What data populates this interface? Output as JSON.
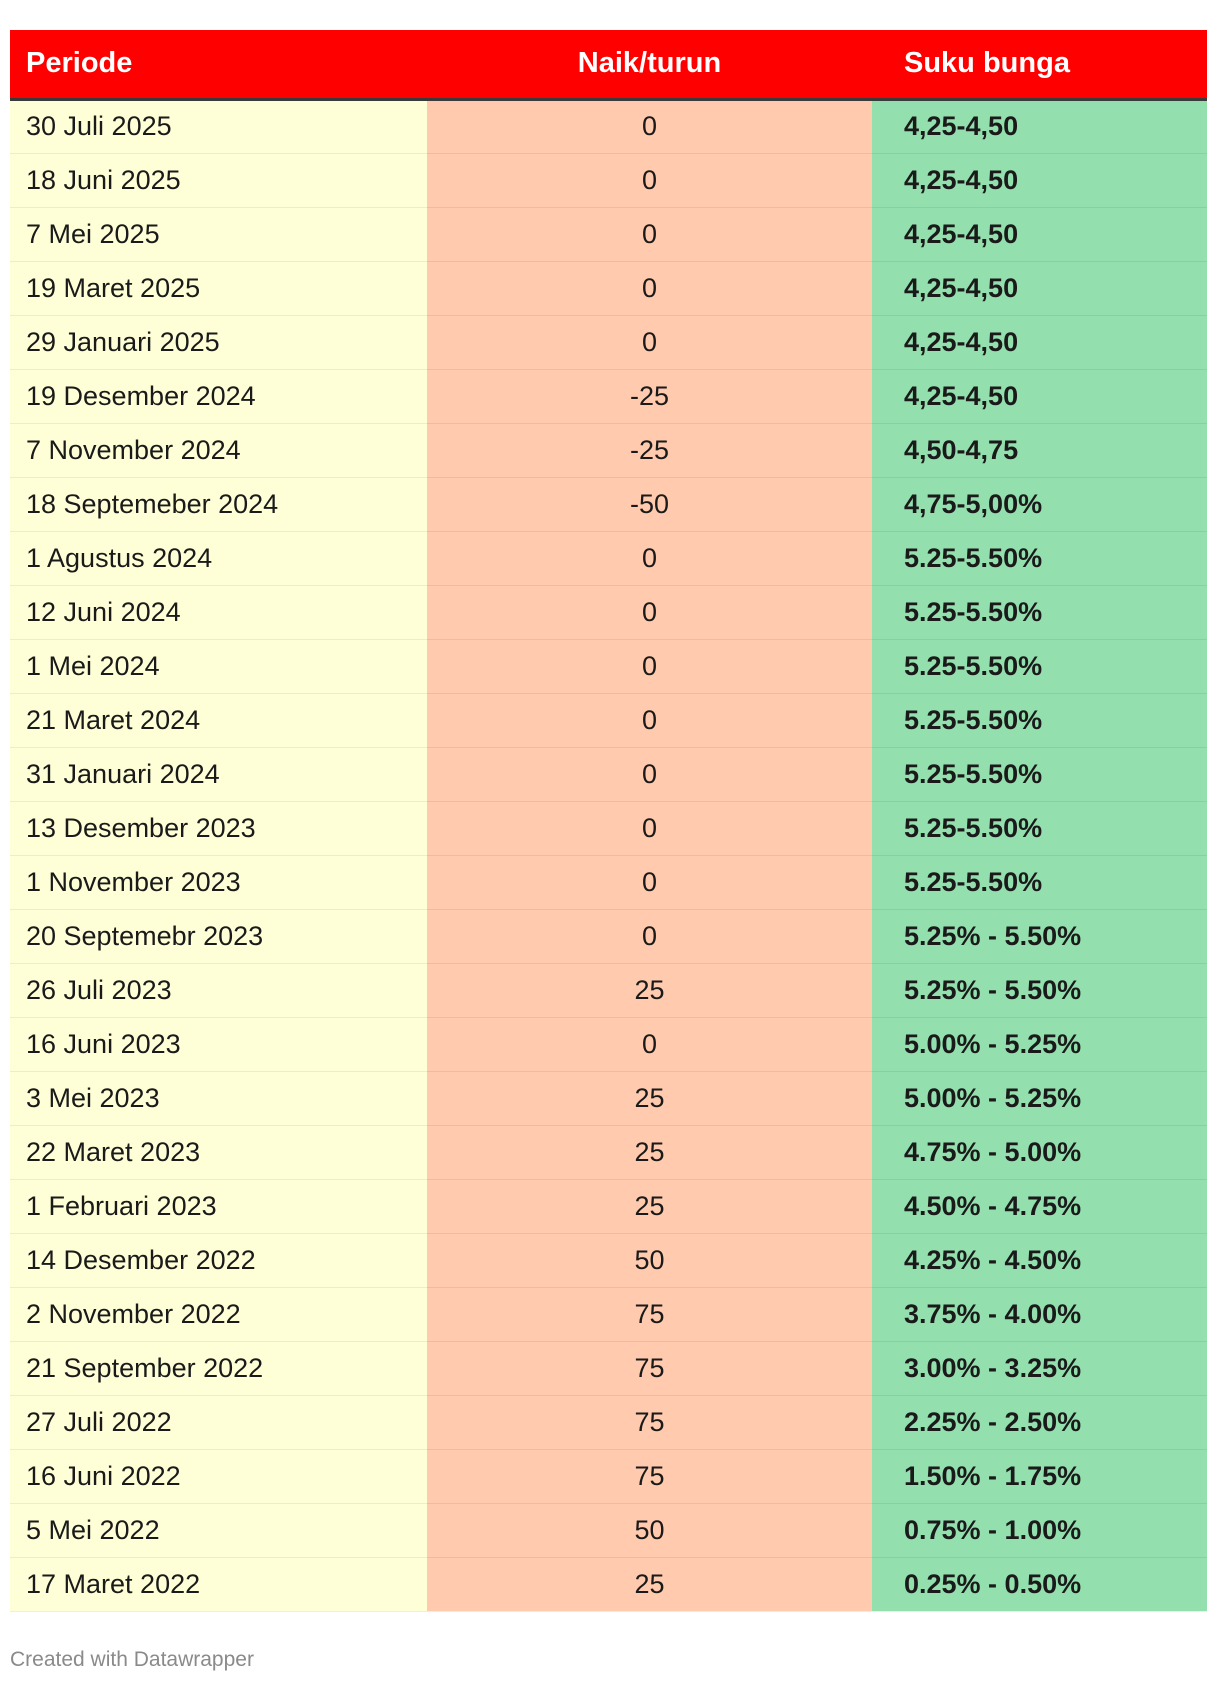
{
  "footer": "Created with Datawrapper",
  "colors": {
    "header_bg": "#ff0000",
    "header_text": "#ffffff",
    "periode_bg": "#ffffd7",
    "naik_bg": "#ffcaad",
    "suku_bg": "#93dfae"
  },
  "chart_data": {
    "type": "table",
    "columns": [
      "Periode",
      "Naik/turun",
      "Suku bunga"
    ],
    "rows": [
      [
        "30 Juli 2025",
        "0",
        "4,25-4,50"
      ],
      [
        "18 Juni 2025",
        "0",
        "4,25-4,50"
      ],
      [
        "7 Mei 2025",
        "0",
        "4,25-4,50"
      ],
      [
        "19 Maret 2025",
        "0",
        "4,25-4,50"
      ],
      [
        "29 Januari 2025",
        "0",
        "4,25-4,50"
      ],
      [
        "19 Desember 2024",
        "-25",
        "4,25-4,50"
      ],
      [
        "7 November 2024",
        "-25",
        "4,50-4,75"
      ],
      [
        "18 Septemeber 2024",
        "-50",
        "4,75-5,00%"
      ],
      [
        "1 Agustus 2024",
        "0",
        "5.25-5.50%"
      ],
      [
        "12 Juni 2024",
        "0",
        "5.25-5.50%"
      ],
      [
        "1 Mei 2024",
        "0",
        "5.25-5.50%"
      ],
      [
        "21 Maret 2024",
        "0",
        "5.25-5.50%"
      ],
      [
        "31 Januari 2024",
        "0",
        "5.25-5.50%"
      ],
      [
        "13 Desember 2023",
        "0",
        "5.25-5.50%"
      ],
      [
        "1 November 2023",
        "0",
        "5.25-5.50%"
      ],
      [
        "20 Septemebr 2023",
        "0",
        "5.25% - 5.50%"
      ],
      [
        "26 Juli 2023",
        "25",
        "5.25% - 5.50%"
      ],
      [
        "16 Juni 2023",
        "0",
        "5.00% - 5.25%"
      ],
      [
        "3 Mei 2023",
        "25",
        "5.00% - 5.25%"
      ],
      [
        "22 Maret 2023",
        "25",
        "4.75% - 5.00%"
      ],
      [
        "1 Februari 2023",
        "25",
        "4.50% - 4.75%"
      ],
      [
        "14 Desember 2022",
        "50",
        "4.25% - 4.50%"
      ],
      [
        "2 November 2022",
        "75",
        "3.75% - 4.00%"
      ],
      [
        "21 September 2022",
        "75",
        "3.00% - 3.25%"
      ],
      [
        "27 Juli 2022",
        "75",
        "2.25% - 2.50%"
      ],
      [
        "16 Juni 2022",
        "75",
        "1.50% - 1.75%"
      ],
      [
        "5 Mei 2022",
        "50",
        "0.75% - 1.00%"
      ],
      [
        "17 Maret 2022",
        "25",
        "0.25% - 0.50%"
      ]
    ]
  }
}
